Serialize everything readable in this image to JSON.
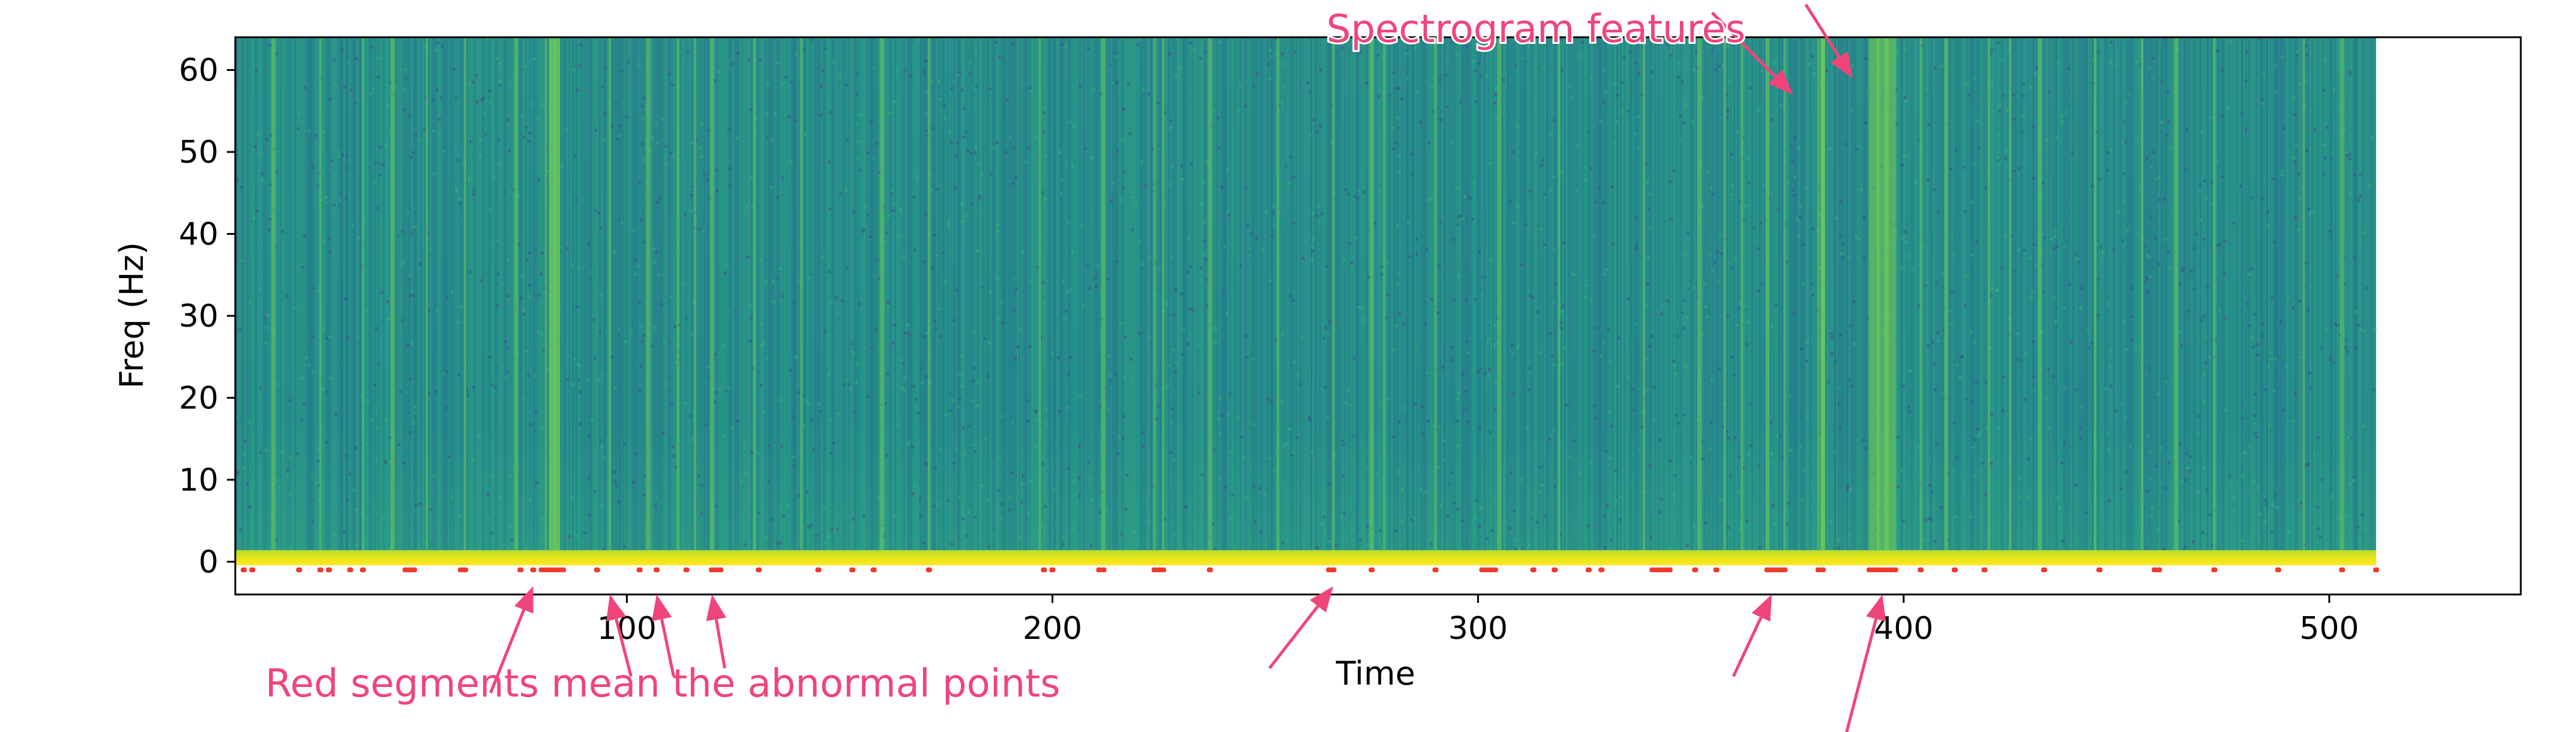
{
  "chart_data": {
    "type": "heatmap",
    "title": "",
    "xlabel": "Time",
    "ylabel": "Freq (Hz)",
    "xlim": [
      8,
      545
    ],
    "ylim": [
      -4,
      64
    ],
    "x_ticks": [
      100,
      200,
      300,
      400,
      500
    ],
    "y_ticks": [
      0,
      10,
      20,
      30,
      40,
      50,
      60
    ],
    "spectrogram": {
      "time_range": [
        8,
        511
      ],
      "freq_range": [
        0,
        64
      ],
      "colormap": "viridis",
      "dc_band_color": "#e6e419",
      "high_energy_times": [
        17,
        28,
        38,
        45,
        53,
        62,
        74,
        81,
        82,
        83,
        84,
        96,
        105,
        112,
        116,
        120,
        130,
        141,
        160,
        171,
        197,
        212,
        224,
        226,
        237,
        253,
        266,
        275,
        278,
        290,
        305,
        319,
        339,
        352,
        358,
        362,
        368,
        372,
        380,
        381,
        392,
        394,
        396,
        398,
        404,
        410,
        420,
        425,
        432,
        445,
        456,
        464,
        473,
        494,
        503
      ]
    },
    "abnormal_points": {
      "label": "Red segments mean the abnormal points",
      "y": -1,
      "color": "#f03a2a",
      "times": [
        10,
        12,
        23,
        28,
        30,
        35,
        38,
        48,
        49,
        50,
        61,
        62,
        75,
        78,
        80,
        81,
        82,
        83,
        84,
        85,
        93,
        103,
        107,
        114,
        120,
        121,
        122,
        131,
        145,
        153,
        158,
        171,
        198,
        200,
        211,
        212,
        224,
        225,
        226,
        237,
        265,
        266,
        275,
        290,
        301,
        302,
        303,
        304,
        313,
        318,
        326,
        329,
        341,
        342,
        343,
        344,
        345,
        351,
        356,
        368,
        369,
        370,
        371,
        372,
        380,
        381,
        392,
        393,
        394,
        395,
        396,
        397,
        398,
        404,
        412,
        419,
        433,
        446,
        459,
        460,
        473,
        488,
        503,
        511
      ]
    },
    "annotations": [
      {
        "text": "Spectrogram features",
        "color": "#f0457a",
        "arrows": [
          {
            "from": [
              355,
              67
            ],
            "to": [
              374,
              57
            ]
          },
          {
            "from": [
              377,
              68
            ],
            "to": [
              388,
              59
            ]
          }
        ]
      },
      {
        "text": "Red segments mean the abnormal points",
        "color": "#f0457a",
        "arrows": [
          {
            "from": [
              68,
              -16
            ],
            "to": [
              78,
              -3
            ]
          },
          {
            "from": [
              101,
              -14
            ],
            "to": [
              96,
              -4
            ]
          },
          {
            "from": [
              111,
              -14
            ],
            "to": [
              107,
              -4
            ]
          },
          {
            "from": [
              123,
              -13
            ],
            "to": [
              120,
              -4
            ]
          },
          {
            "from": [
              251,
              -13
            ],
            "to": [
              266,
              -3
            ]
          },
          {
            "from": [
              360,
              -14
            ],
            "to": [
              369,
              -4
            ]
          },
          {
            "from": [
              386,
              -22
            ],
            "to": [
              395,
              -4
            ]
          }
        ]
      }
    ]
  }
}
